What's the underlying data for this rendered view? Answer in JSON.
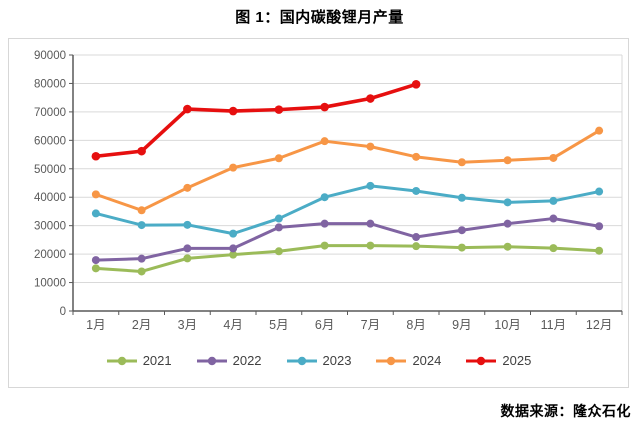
{
  "title": "图 1：国内碳酸锂月产量",
  "source": "数据来源：隆众石化",
  "chart_data": {
    "type": "line",
    "title": "图 1：国内碳酸锂月产量",
    "categories": [
      "1月",
      "2月",
      "3月",
      "4月",
      "5月",
      "6月",
      "7月",
      "8月",
      "9月",
      "10月",
      "11月",
      "12月"
    ],
    "series": [
      {
        "name": "2021",
        "color": "#9bbb59",
        "values": [
          15000,
          13900,
          18500,
          19800,
          21000,
          23000,
          23000,
          22800,
          22300,
          22600,
          22100,
          21200
        ]
      },
      {
        "name": "2022",
        "color": "#8064a2",
        "values": [
          17900,
          18400,
          22000,
          22000,
          29400,
          30700,
          30700,
          26000,
          28400,
          30700,
          32500,
          29800
        ]
      },
      {
        "name": "2023",
        "color": "#4bacc6",
        "values": [
          34300,
          30200,
          30300,
          27200,
          32500,
          40000,
          44000,
          42200,
          39800,
          38200,
          38700,
          42000
        ]
      },
      {
        "name": "2024",
        "color": "#f79646",
        "values": [
          41000,
          35400,
          43300,
          50400,
          53700,
          59700,
          57800,
          54200,
          52300,
          53000,
          53800,
          63400
        ]
      },
      {
        "name": "2025",
        "color": "#e60f0f",
        "values": [
          54400,
          56200,
          71000,
          70300,
          70800,
          71700,
          74700,
          79700,
          null,
          null,
          null,
          null
        ]
      }
    ],
    "ylim": [
      0,
      90000
    ],
    "ytick_step": 10000,
    "xlabel": "",
    "ylabel": "",
    "grid": true,
    "legend_position": "bottom",
    "marker": "circle"
  },
  "style": {
    "gridline_color": "#d9d9d9",
    "axis_color": "#595959",
    "tick_label_color": "#595959",
    "legend_text_color": "#404040"
  }
}
